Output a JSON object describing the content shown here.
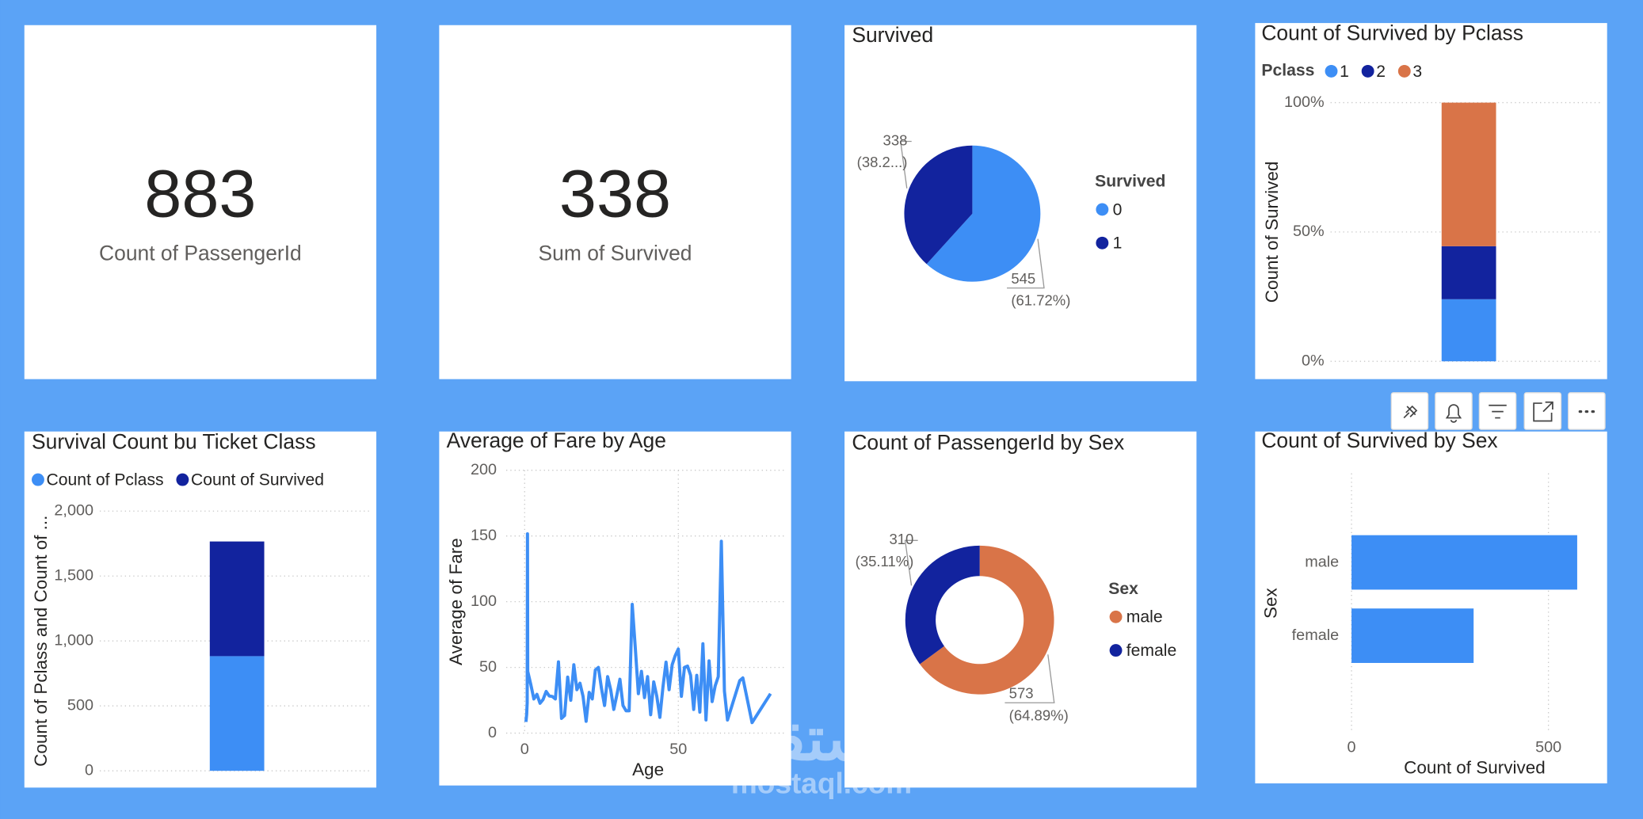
{
  "cards": [
    {
      "value": 883,
      "label": "Count of PassengerId"
    },
    {
      "value": 338,
      "label": "Sum of Survived"
    }
  ],
  "chart_data": [
    {
      "type": "pie",
      "title": "Survived",
      "legend_title": "Survived",
      "categories": [
        "0",
        "1"
      ],
      "values": [
        545,
        338
      ],
      "percent_labels": [
        "(61.72%)",
        "(38.2...)"
      ],
      "colors": [
        "#3d8ef5",
        "#12239e"
      ],
      "legend": "right"
    },
    {
      "type": "bar",
      "stacked": "percent",
      "title": "Count of Survived by Pclass",
      "legend_title": "Pclass",
      "y_label": "Count of Survived",
      "categories": [
        null
      ],
      "series": [
        {
          "name": "1",
          "color": "#3d8ef5",
          "values": [
            24
          ]
        },
        {
          "name": "2",
          "color": "#12239e",
          "values": [
            20.5
          ]
        },
        {
          "name": "3",
          "color": "#d97448",
          "values": [
            55.5
          ]
        }
      ],
      "ylim": [
        0,
        100
      ],
      "yticks": [
        {
          "value": 0,
          "label": "0%"
        },
        {
          "value": 50,
          "label": "50%"
        },
        {
          "value": 100,
          "label": "100%"
        }
      ],
      "grid": true,
      "legend": "top"
    },
    {
      "type": "bar",
      "stacked": "normal",
      "title": "Survival Count bu Ticket Class",
      "y_label": "Count of Pclass and Count of ...",
      "categories": [
        null
      ],
      "series": [
        {
          "name": "Count of Pclass",
          "color": "#3d8ef5",
          "values": [
            883
          ]
        },
        {
          "name": "Count of Survived",
          "color": "#12239e",
          "values": [
            883
          ]
        }
      ],
      "ylim": [
        0,
        2000
      ],
      "yticks": [
        0,
        500,
        {
          "value": 1000,
          "label": "1,000"
        },
        {
          "value": 1500,
          "label": "1,500"
        },
        {
          "value": 2000,
          "label": "2,000"
        }
      ],
      "grid": true,
      "legend": "top"
    },
    {
      "type": "line",
      "title": "Average of Fare by Age",
      "x_label": "Age",
      "y_label": "Average of Fare",
      "color": "#3d8ef5",
      "x": [
        0.42,
        0.67,
        0.75,
        0.83,
        0.92,
        1,
        2,
        3,
        4,
        5,
        6,
        7,
        8,
        9,
        10,
        11,
        12,
        13,
        14,
        15,
        16,
        17,
        18,
        19,
        20,
        21,
        22,
        23,
        24,
        25,
        26,
        27,
        28,
        29,
        30,
        31,
        32,
        33,
        34,
        35,
        36,
        37,
        38,
        39,
        40,
        41,
        42,
        43,
        44,
        45,
        46,
        47,
        48,
        49,
        50,
        51,
        52,
        53,
        54,
        55,
        56,
        57,
        58,
        59,
        60,
        61,
        62,
        63,
        64,
        65,
        66,
        70,
        71,
        74,
        80
      ],
      "values": [
        8.5,
        14.5,
        19.3,
        23,
        151.6,
        47,
        37,
        26,
        29.5,
        22.7,
        25.6,
        31.7,
        28.3,
        27.9,
        26,
        54.2,
        11.2,
        13.4,
        42.6,
        25,
        52,
        33,
        38,
        28,
        9,
        31,
        26,
        48,
        50,
        34,
        21,
        43,
        33,
        18,
        29,
        41,
        21,
        17,
        17,
        98,
        65,
        30,
        47,
        27,
        43,
        14,
        39,
        28,
        12,
        35,
        54,
        33,
        52,
        59,
        64,
        28,
        50,
        51,
        44,
        18,
        44,
        16,
        68,
        10,
        55,
        24,
        36,
        43,
        146,
        32,
        10,
        40,
        42,
        8,
        30
      ],
      "xlim": [
        -6,
        85
      ],
      "xticks": [
        0,
        50
      ],
      "ylim": [
        0,
        200
      ],
      "yticks": [
        0,
        50,
        100,
        150,
        200
      ],
      "grid": true
    },
    {
      "type": "donut",
      "title": "Count of PassengerId by Sex",
      "legend_title": "Sex",
      "categories": [
        "male",
        "female"
      ],
      "values": [
        573,
        310
      ],
      "percent_labels": [
        "(64.89%)",
        "(35.11%)"
      ],
      "colors": [
        "#d97448",
        "#12239e"
      ],
      "legend": "right"
    },
    {
      "type": "hbar",
      "title": "Count of Survived by Sex",
      "x_label": "Count of Survived",
      "y_label": "Sex",
      "categories": [
        "male",
        "female"
      ],
      "values": [
        573,
        310
      ],
      "color": "#3d8ef5",
      "xlim": [
        0,
        625
      ],
      "xticks": [
        0,
        500
      ],
      "grid": true
    }
  ],
  "watermark": {
    "arabic": "مستقل",
    "latin": "mostaql.com"
  }
}
